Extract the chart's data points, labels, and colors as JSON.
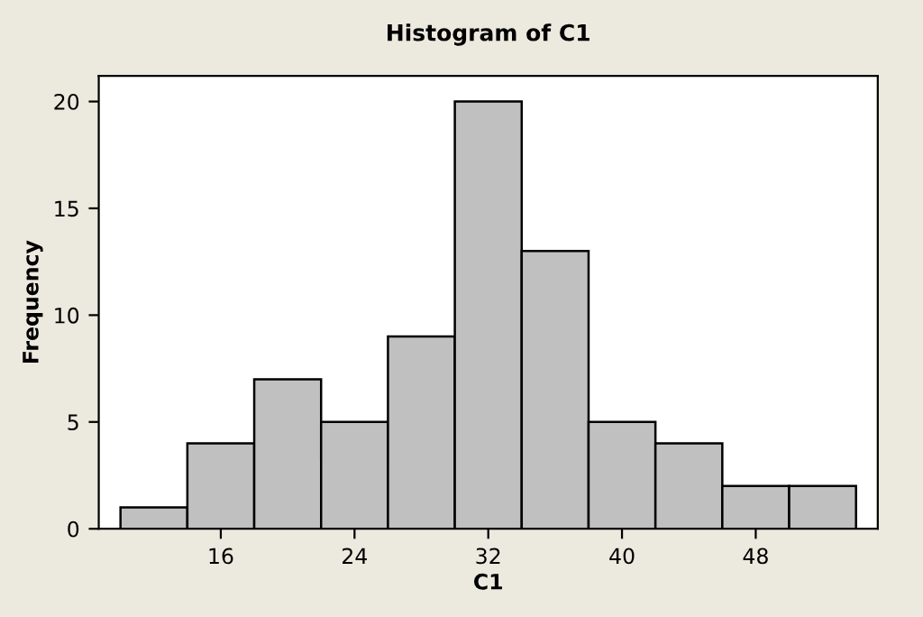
{
  "chart_data": {
    "type": "histogram",
    "title": "Histogram of C1",
    "xlabel": "C1",
    "ylabel": "Frequency",
    "bins": [
      10,
      14,
      18,
      22,
      26,
      30,
      34,
      38,
      42,
      46,
      50,
      54
    ],
    "values": [
      1,
      4,
      7,
      5,
      9,
      20,
      13,
      5,
      4,
      2,
      2
    ],
    "color": "#c0c0c0",
    "xlim": [
      8.7,
      55.3
    ],
    "xticks": [
      16,
      24,
      32,
      40,
      48
    ],
    "ylim": [
      0,
      21.2
    ],
    "yticks": [
      0,
      5,
      10,
      15,
      20
    ],
    "grid": false
  }
}
